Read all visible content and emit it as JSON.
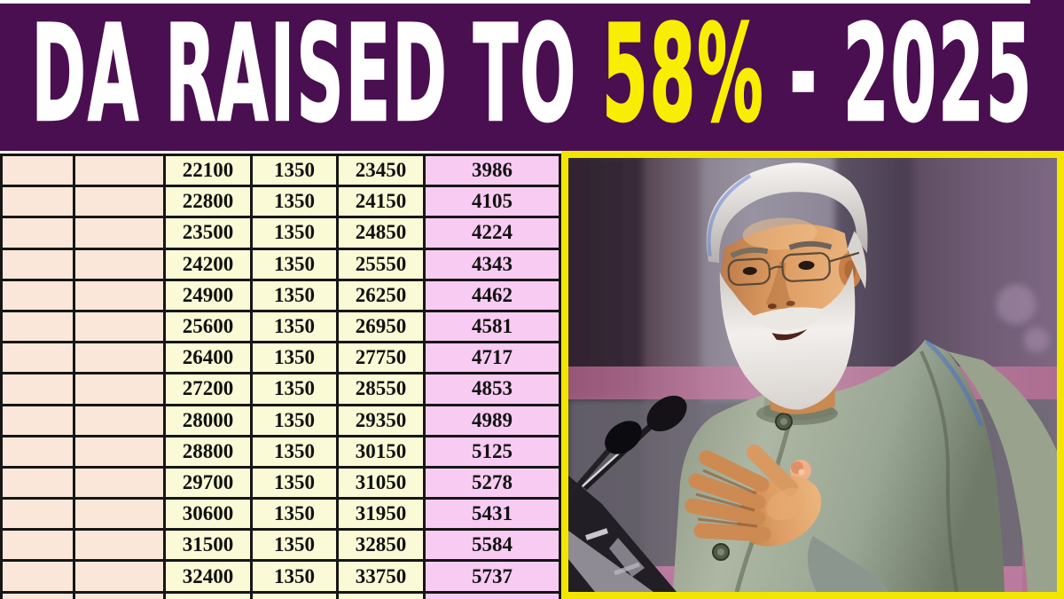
{
  "banner": {
    "part1": "DA RAISED TO ",
    "part2": "58%",
    "part3": " - 2025"
  },
  "table": {
    "rows": [
      [
        "",
        "",
        "22100",
        "1350",
        "23450",
        "3986"
      ],
      [
        "",
        "",
        "22800",
        "1350",
        "24150",
        "4105"
      ],
      [
        "",
        "",
        "23500",
        "1350",
        "24850",
        "4224"
      ],
      [
        "",
        "",
        "24200",
        "1350",
        "25550",
        "4343"
      ],
      [
        "",
        "",
        "24900",
        "1350",
        "26250",
        "4462"
      ],
      [
        "",
        "",
        "25600",
        "1350",
        "26950",
        "4581"
      ],
      [
        "",
        "",
        "26400",
        "1350",
        "27750",
        "4717"
      ],
      [
        "",
        "",
        "27200",
        "1350",
        "28550",
        "4853"
      ],
      [
        "",
        "",
        "28000",
        "1350",
        "29350",
        "4989"
      ],
      [
        "",
        "",
        "28800",
        "1350",
        "30150",
        "5125"
      ],
      [
        "",
        "",
        "29700",
        "1350",
        "31050",
        "5278"
      ],
      [
        "",
        "",
        "30600",
        "1350",
        "31950",
        "5431"
      ],
      [
        "",
        "",
        "31500",
        "1350",
        "32850",
        "5584"
      ],
      [
        "",
        "",
        "32400",
        "1350",
        "33750",
        "5737"
      ],
      [
        "",
        "",
        "",
        "",
        "",
        ""
      ]
    ]
  },
  "photo": {
    "subject": "Speaker with white hair and beard, glasses, grey Nehru vest, gesturing at podium microphones"
  },
  "colors": {
    "banner_bg": "#4a0f50",
    "banner_text": "#ffffff",
    "banner_highlight": "#f8ee00",
    "top_strip": "#ffffff",
    "divider": "#ffffff",
    "table_border": "#161616",
    "col_empty_bg": "#fbe7d9",
    "col_value_bg": "#fbfad6",
    "col_da_bg": "#f8cbf2",
    "cell_text": "#111111",
    "photo_frame": "#f2e600"
  }
}
